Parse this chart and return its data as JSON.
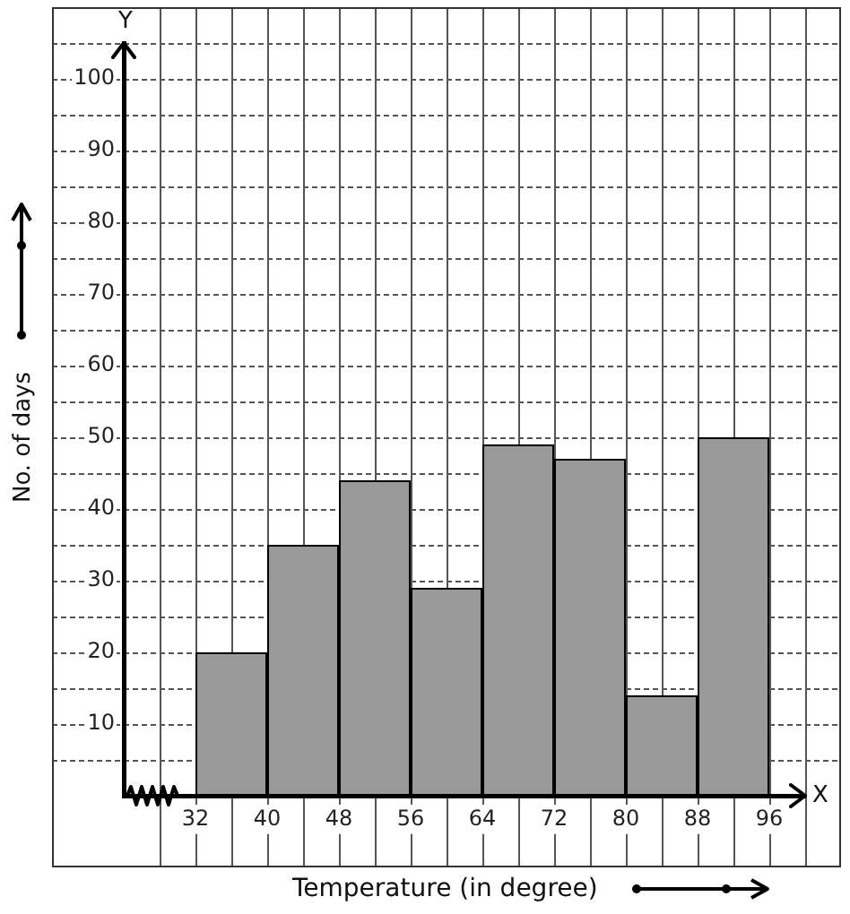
{
  "chart_data": {
    "type": "histogram",
    "xlabel": "Temperature (in degree)",
    "ylabel": "No. of days",
    "annotations": [
      "Y",
      "X"
    ],
    "bins": [
      32,
      40,
      48,
      56,
      64,
      72,
      80,
      88,
      96
    ],
    "values": [
      20,
      35,
      44,
      29,
      49,
      47,
      14,
      50
    ],
    "color": "#999999",
    "xlim": [
      24,
      100
    ],
    "ylim": [
      0,
      105
    ],
    "xticks": [
      {
        "value": 28,
        "label": null
      },
      32,
      {
        "value": 36,
        "label": null
      },
      40,
      {
        "value": 44,
        "label": null
      },
      48,
      {
        "value": 52,
        "label": null
      },
      56,
      {
        "value": 60,
        "label": null
      },
      64,
      {
        "value": 68,
        "label": null
      },
      72,
      {
        "value": 76,
        "label": null
      },
      80,
      {
        "value": 84,
        "label": null
      },
      88,
      {
        "value": 92,
        "label": null
      },
      96,
      {
        "value": 100,
        "label": null
      }
    ],
    "yticks": [
      {
        "value": 5,
        "label": null
      },
      10,
      {
        "value": 15,
        "label": null
      },
      20,
      {
        "value": 25,
        "label": null
      },
      30,
      {
        "value": 35,
        "label": null
      },
      40,
      {
        "value": 45,
        "label": null
      },
      50,
      {
        "value": 55,
        "label": null
      },
      60,
      {
        "value": 65,
        "label": null
      },
      70,
      {
        "value": 75,
        "label": null
      },
      80,
      {
        "value": 85,
        "label": null
      },
      90,
      {
        "value": 95,
        "label": null
      },
      100,
      {
        "value": 105,
        "label": null
      }
    ],
    "grid": true
  }
}
